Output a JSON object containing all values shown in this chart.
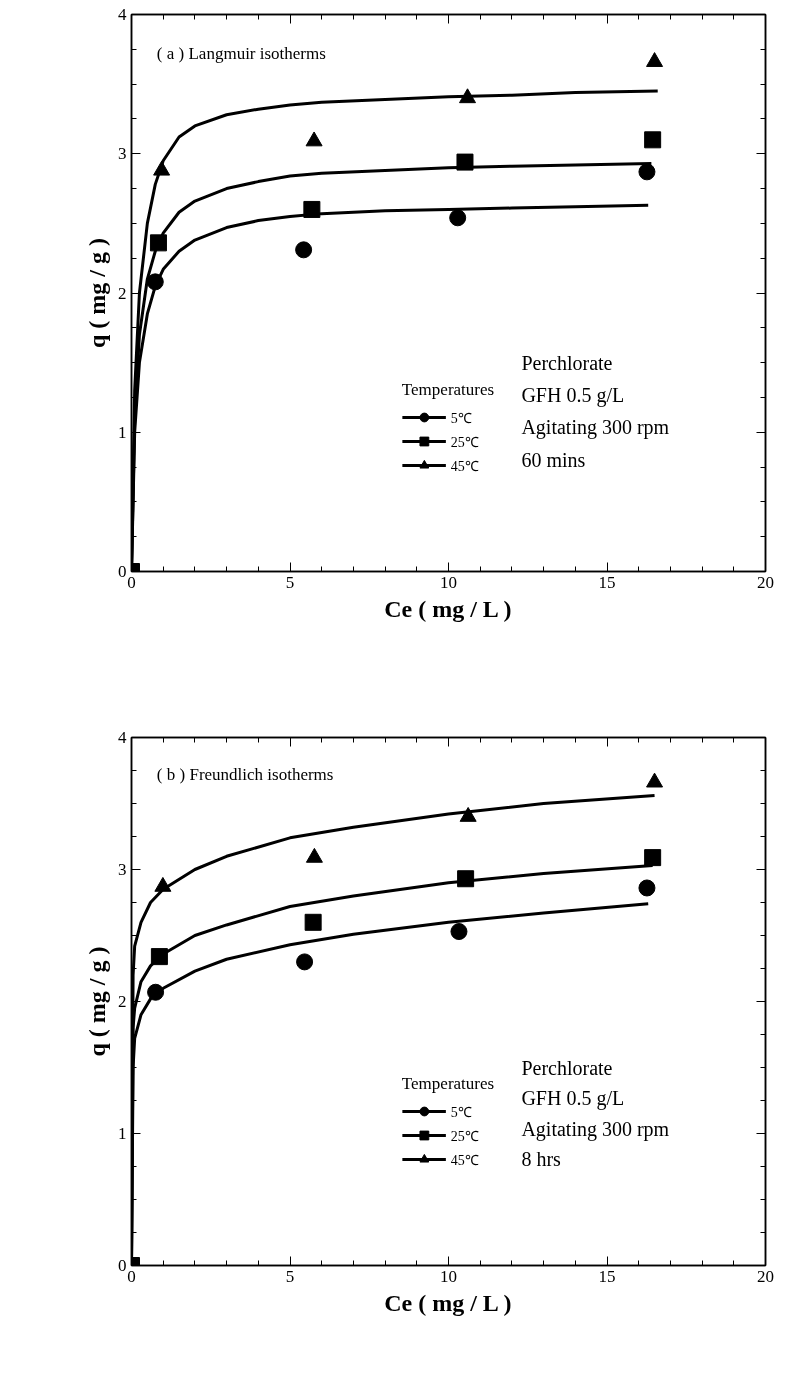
{
  "chart_data": [
    {
      "type": "scatter",
      "title": "( a ) Langmuir isotherms",
      "xlabel": "Ce ( mg / L )",
      "ylabel": "q ( mg / g )",
      "legend_title": "Temperatures",
      "legend": "bottom",
      "grid": false,
      "xlim": [
        0,
        20
      ],
      "ylim": [
        0,
        4
      ],
      "xticks": [
        0,
        5,
        10,
        15,
        20,
        {
          "value": 1,
          "label": null
        },
        {
          "value": 2,
          "label": null
        },
        {
          "value": 3,
          "label": null
        },
        {
          "value": 4,
          "label": null
        },
        {
          "value": 6,
          "label": null
        },
        {
          "value": 7,
          "label": null
        },
        {
          "value": 8,
          "label": null
        },
        {
          "value": 9,
          "label": null
        },
        {
          "value": 11,
          "label": null
        },
        {
          "value": 12,
          "label": null
        },
        {
          "value": 13,
          "label": null
        },
        {
          "value": 14,
          "label": null
        },
        {
          "value": 16,
          "label": null
        },
        {
          "value": 17,
          "label": null
        },
        {
          "value": 18,
          "label": null
        },
        {
          "value": 19,
          "label": null
        }
      ],
      "yticks": [
        0,
        1,
        2,
        3,
        4,
        {
          "value": 0.25,
          "label": null
        },
        {
          "value": 0.5,
          "label": null
        },
        {
          "value": 0.75,
          "label": null
        },
        {
          "value": 1.25,
          "label": null
        },
        {
          "value": 1.5,
          "label": null
        },
        {
          "value": 1.75,
          "label": null
        },
        {
          "value": 2.25,
          "label": null
        },
        {
          "value": 2.5,
          "label": null
        },
        {
          "value": 2.75,
          "label": null
        },
        {
          "value": 3.25,
          "label": null
        },
        {
          "value": 3.5,
          "label": null
        },
        {
          "value": 3.75,
          "label": null
        }
      ],
      "annotations": [
        "Perchlorate",
        "GFH 0.5 g/L",
        "Agitating 300 rpm",
        "60 mins"
      ],
      "series": [
        {
          "name": "5℃",
          "marker": "circle",
          "color": "#000000",
          "x": [
            0.75,
            5.43,
            10.29,
            16.26
          ],
          "values": [
            2.08,
            2.31,
            2.54,
            2.87
          ]
        },
        {
          "name": "25℃",
          "marker": "square",
          "color": "#000000",
          "x": [
            0,
            0.85,
            5.69,
            10.52,
            16.44
          ],
          "values": [
            0,
            2.36,
            2.6,
            2.94,
            3.1
          ]
        },
        {
          "name": "45℃",
          "marker": "triangle",
          "color": "#000000",
          "x": [
            0.95,
            5.76,
            10.6,
            16.5
          ],
          "values": [
            2.88,
            3.09,
            3.4,
            3.66
          ]
        },
        {
          "type": "line",
          "line_style": "solid",
          "color": "#000000",
          "x": [
            0,
            0.1,
            0.25,
            0.5,
            0.75,
            1,
            1.5,
            2,
            3,
            4,
            5,
            6,
            8,
            10,
            12,
            14,
            16.3
          ],
          "values": [
            0,
            1.0,
            1.5,
            1.85,
            2.05,
            2.17,
            2.3,
            2.38,
            2.47,
            2.52,
            2.55,
            2.57,
            2.59,
            2.6,
            2.61,
            2.62,
            2.63
          ]
        },
        {
          "type": "line",
          "line_style": "solid",
          "color": "#000000",
          "x": [
            0,
            0.1,
            0.25,
            0.5,
            0.75,
            1,
            1.5,
            2,
            3,
            4,
            5,
            6,
            8,
            10,
            12,
            14,
            16.4
          ],
          "values": [
            0,
            1.1,
            1.7,
            2.1,
            2.3,
            2.43,
            2.58,
            2.66,
            2.75,
            2.8,
            2.84,
            2.86,
            2.88,
            2.9,
            2.91,
            2.92,
            2.93
          ]
        },
        {
          "type": "line",
          "line_style": "solid",
          "color": "#000000",
          "x": [
            0,
            0.1,
            0.25,
            0.5,
            0.75,
            1,
            1.5,
            2,
            3,
            4,
            5,
            6,
            8,
            10,
            12,
            14,
            16.6
          ],
          "values": [
            0,
            1.3,
            2.0,
            2.5,
            2.78,
            2.95,
            3.12,
            3.2,
            3.28,
            3.32,
            3.35,
            3.37,
            3.39,
            3.41,
            3.42,
            3.44,
            3.45
          ]
        }
      ]
    },
    {
      "type": "scatter",
      "title": "( b ) Freundlich isotherms",
      "xlabel": "Ce ( mg / L )",
      "ylabel": "q ( mg / g )",
      "legend_title": "Temperatures",
      "legend": "bottom",
      "grid": false,
      "xlim": [
        0,
        20
      ],
      "ylim": [
        0,
        4
      ],
      "xticks": [
        0,
        5,
        10,
        15,
        20,
        {
          "value": 1,
          "label": null
        },
        {
          "value": 2,
          "label": null
        },
        {
          "value": 3,
          "label": null
        },
        {
          "value": 4,
          "label": null
        },
        {
          "value": 6,
          "label": null
        },
        {
          "value": 7,
          "label": null
        },
        {
          "value": 8,
          "label": null
        },
        {
          "value": 9,
          "label": null
        },
        {
          "value": 11,
          "label": null
        },
        {
          "value": 12,
          "label": null
        },
        {
          "value": 13,
          "label": null
        },
        {
          "value": 14,
          "label": null
        },
        {
          "value": 16,
          "label": null
        },
        {
          "value": 17,
          "label": null
        },
        {
          "value": 18,
          "label": null
        },
        {
          "value": 19,
          "label": null
        }
      ],
      "yticks": [
        0,
        1,
        2,
        3,
        4,
        {
          "value": 0.25,
          "label": null
        },
        {
          "value": 0.5,
          "label": null
        },
        {
          "value": 0.75,
          "label": null
        },
        {
          "value": 1.25,
          "label": null
        },
        {
          "value": 1.5,
          "label": null
        },
        {
          "value": 1.75,
          "label": null
        },
        {
          "value": 2.25,
          "label": null
        },
        {
          "value": 2.5,
          "label": null
        },
        {
          "value": 2.75,
          "label": null
        },
        {
          "value": 3.25,
          "label": null
        },
        {
          "value": 3.5,
          "label": null
        },
        {
          "value": 3.75,
          "label": null
        }
      ],
      "annotations": [
        "Perchlorate",
        "GFH 0.5 g/L",
        "Agitating 300 rpm",
        "8 hrs"
      ],
      "series": [
        {
          "name": "5℃",
          "marker": "circle",
          "color": "#000000",
          "x": [
            0.76,
            5.46,
            10.33,
            16.26
          ],
          "values": [
            2.07,
            2.3,
            2.53,
            2.86
          ]
        },
        {
          "name": "25℃",
          "marker": "square",
          "color": "#000000",
          "x": [
            0,
            0.88,
            5.73,
            10.54,
            16.44
          ],
          "values": [
            0,
            2.34,
            2.6,
            2.93,
            3.09
          ]
        },
        {
          "name": "45℃",
          "marker": "triangle",
          "color": "#000000",
          "x": [
            0.99,
            5.77,
            10.62,
            16.5
          ],
          "values": [
            2.87,
            3.09,
            3.4,
            3.66
          ]
        },
        {
          "type": "line",
          "line_style": "solid",
          "color": "#000000",
          "x": [
            0,
            0.05,
            0.1,
            0.3,
            0.6,
            1,
            2,
            3,
            5,
            7,
            10,
            13,
            16.3
          ],
          "values": [
            0,
            1.5,
            1.72,
            1.9,
            2.02,
            2.1,
            2.23,
            2.32,
            2.43,
            2.51,
            2.6,
            2.67,
            2.74
          ]
        },
        {
          "type": "line",
          "line_style": "solid",
          "color": "#000000",
          "x": [
            0,
            0.05,
            0.1,
            0.3,
            0.6,
            1,
            2,
            3,
            5,
            7,
            10,
            13,
            16.44
          ],
          "values": [
            0,
            1.8,
            1.95,
            2.15,
            2.27,
            2.36,
            2.5,
            2.58,
            2.72,
            2.8,
            2.9,
            2.97,
            3.03
          ]
        },
        {
          "type": "line",
          "line_style": "solid",
          "color": "#000000",
          "x": [
            0,
            0.05,
            0.1,
            0.3,
            0.6,
            1,
            2,
            3,
            5,
            7,
            10,
            13,
            16.5
          ],
          "values": [
            0,
            2.2,
            2.42,
            2.6,
            2.75,
            2.85,
            3.0,
            3.1,
            3.24,
            3.32,
            3.42,
            3.5,
            3.56
          ]
        }
      ]
    }
  ]
}
